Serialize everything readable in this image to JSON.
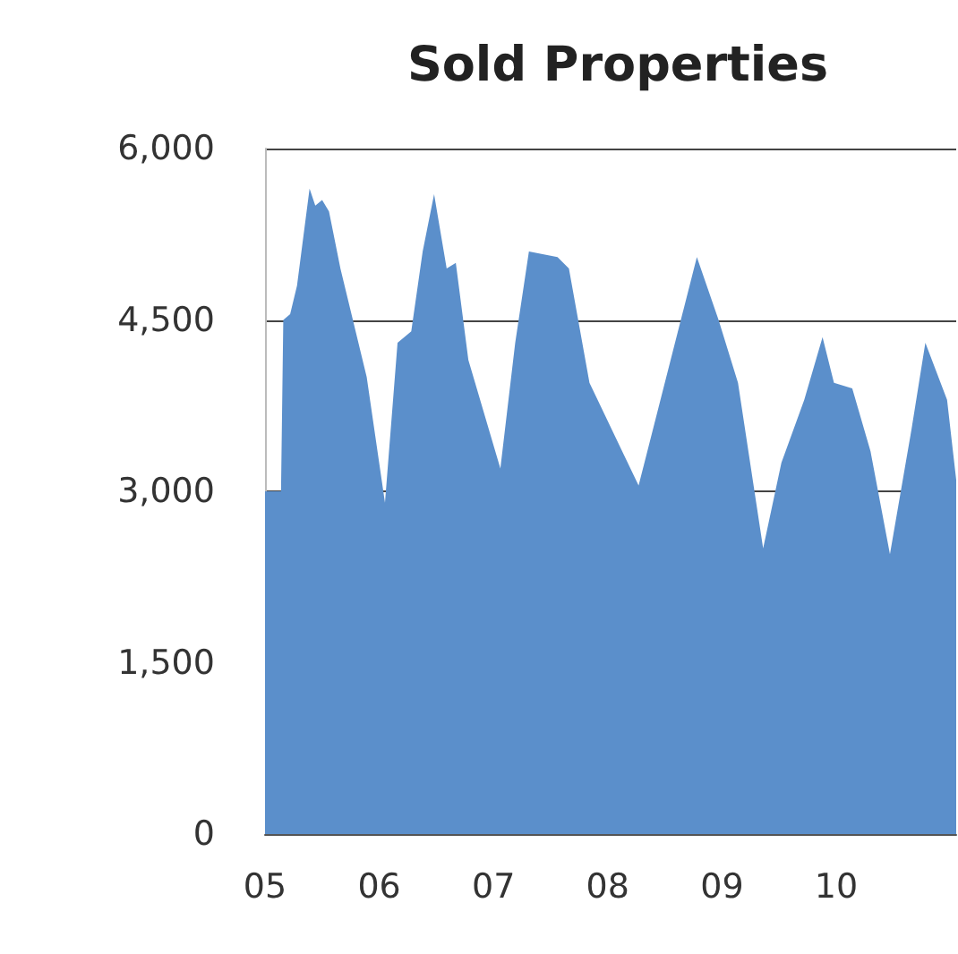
{
  "chart_data": {
    "type": "area",
    "title": "Sold Properties",
    "x": [
      2005.0,
      2005.14,
      2005.16,
      2005.22,
      2005.28,
      2005.39,
      2005.44,
      2005.5,
      2005.56,
      2005.66,
      2005.89,
      2006.05,
      2006.16,
      2006.28,
      2006.38,
      2006.48,
      2006.59,
      2006.67,
      2006.78,
      2007.06,
      2007.19,
      2007.31,
      2007.56,
      2007.66,
      2007.84,
      2008.27,
      2008.78,
      2008.97,
      2009.14,
      2009.36,
      2009.52,
      2009.72,
      2009.88,
      2009.98,
      2010.14,
      2010.3,
      2010.47,
      2010.66,
      2010.78,
      2010.97,
      2011.05
    ],
    "series": [
      {
        "color": "#5b8fcb",
        "values": [
          3000,
          3000,
          4500,
          4550,
          4800,
          5650,
          5500,
          5550,
          5450,
          4950,
          4000,
          2900,
          4300,
          4400,
          5100,
          5600,
          4950,
          5000,
          4150,
          3200,
          4300,
          5100,
          5050,
          4950,
          3950,
          3050,
          5050,
          4500,
          3950,
          2500,
          3250,
          3800,
          4350,
          3950,
          3900,
          3350,
          2450,
          3550,
          4300,
          3800,
          3100
        ]
      }
    ],
    "xlim": [
      2005,
      2011.05
    ],
    "xticks": [
      {
        "value": 2005,
        "label": "05"
      },
      {
        "value": 2006,
        "label": "06"
      },
      {
        "value": 2007,
        "label": "07"
      },
      {
        "value": 2008,
        "label": "08"
      },
      {
        "value": 2009,
        "label": "09"
      },
      {
        "value": 2010,
        "label": "10"
      }
    ],
    "ylim": [
      0,
      6000
    ],
    "yticks": [
      {
        "value": 0,
        "label": "0"
      },
      {
        "value": 1500,
        "label": "1,500"
      },
      {
        "value": 3000,
        "label": "3,000"
      },
      {
        "value": 4500,
        "label": "4,500"
      },
      {
        "value": 6000,
        "label": "6,000"
      }
    ],
    "grid": "y",
    "marker": "none"
  }
}
